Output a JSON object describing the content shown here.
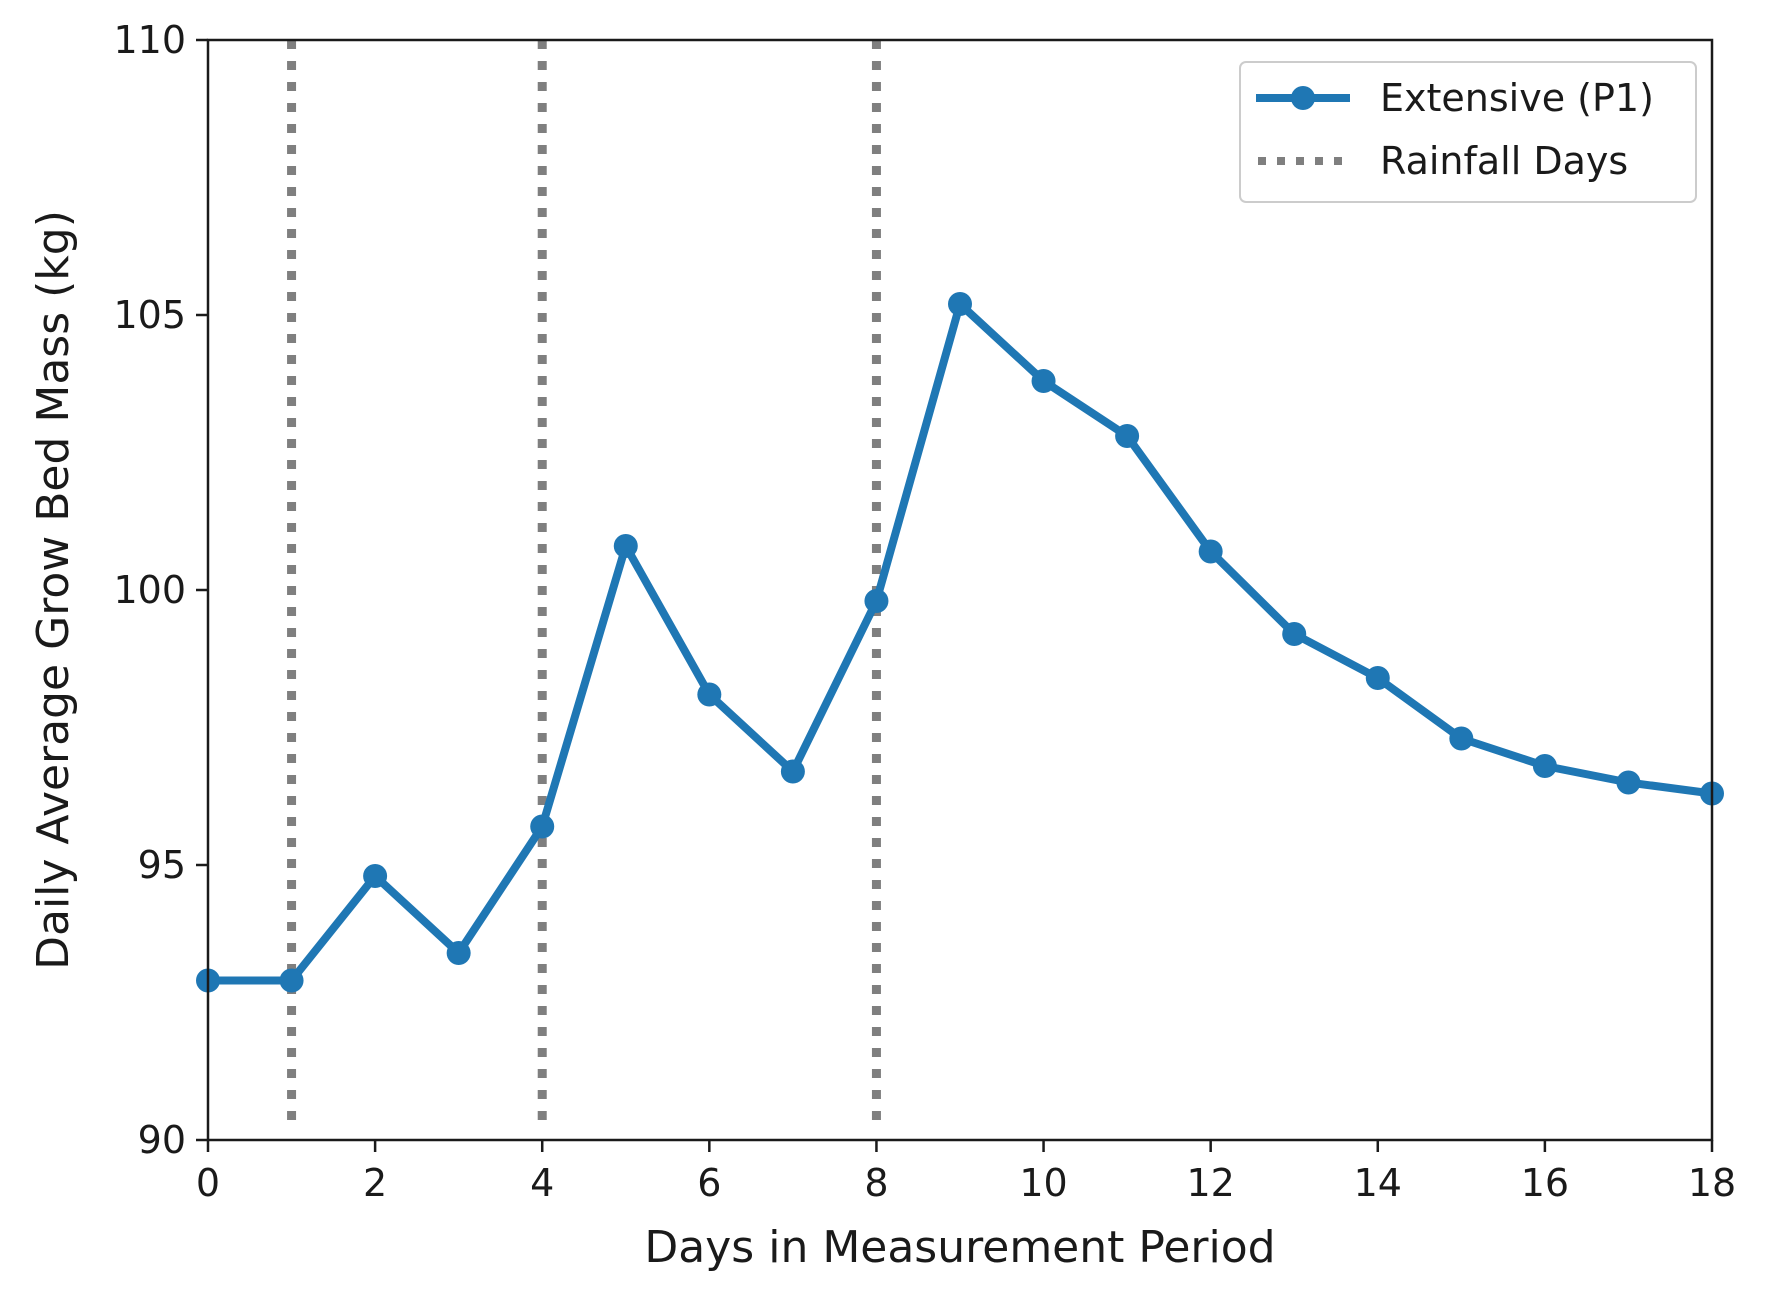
{
  "chart_data": {
    "type": "line",
    "title": "",
    "xlabel": "Days in Measurement Period",
    "ylabel": "Daily Average Grow Bed Mass (kg)",
    "xlim": [
      0,
      18
    ],
    "ylim": [
      90,
      110
    ],
    "xticks": [
      0,
      2,
      4,
      6,
      8,
      10,
      12,
      14,
      16,
      18
    ],
    "yticks": [
      90,
      95,
      100,
      105,
      110
    ],
    "grid": false,
    "legend_position": "top-right",
    "series": [
      {
        "name": "Extensive (P1)",
        "style": "solid line with circle markers",
        "color": "#1f77b4",
        "x": [
          0,
          1,
          2,
          3,
          4,
          5,
          6,
          7,
          8,
          9,
          10,
          11,
          12,
          13,
          14,
          15,
          16,
          17,
          18
        ],
        "values": [
          92.9,
          92.9,
          94.8,
          93.4,
          95.7,
          100.8,
          98.1,
          96.7,
          99.8,
          105.2,
          103.8,
          102.8,
          100.7,
          99.2,
          98.4,
          97.3,
          96.8,
          96.5,
          96.3
        ]
      }
    ],
    "reference_lines": {
      "name": "Rainfall Days",
      "style": "dotted vertical",
      "color": "#7f7f7f",
      "x": [
        1,
        4,
        8
      ]
    }
  }
}
